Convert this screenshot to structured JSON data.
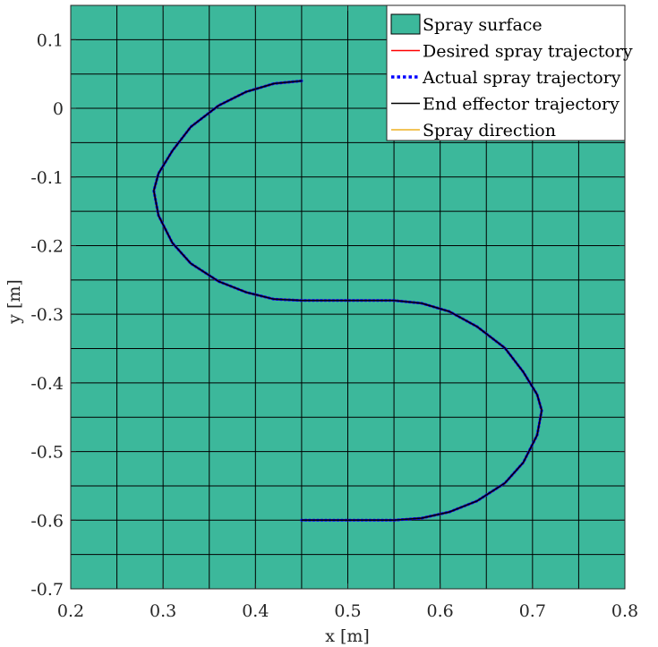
{
  "chart_data": {
    "type": "line",
    "title": "",
    "xlabel": "x [m]",
    "ylabel": "y [m]",
    "xlim": [
      0.2,
      0.8
    ],
    "ylim": [
      -0.7,
      0.15
    ],
    "xticks": [
      0.2,
      0.3,
      0.4,
      0.5,
      0.6,
      0.7,
      0.8
    ],
    "xtick_labels": [
      "0.2",
      "0.3",
      "0.4",
      "0.5",
      "0.6",
      "0.7",
      "0.8"
    ],
    "yticks": [
      0.1,
      0,
      -0.1,
      -0.2,
      -0.3,
      -0.4,
      -0.5,
      -0.6,
      -0.7
    ],
    "ytick_labels": [
      "0.1",
      "0",
      "-0.1",
      "-0.2",
      "-0.3",
      "-0.4",
      "-0.5",
      "-0.6",
      "-0.7"
    ],
    "surface": {
      "name": "Spray surface",
      "color": "#3cb89b",
      "edge_color": "#000000",
      "x_grid": [
        0.2,
        0.25,
        0.3,
        0.35,
        0.4,
        0.45,
        0.5,
        0.55,
        0.6,
        0.65,
        0.7,
        0.75,
        0.8
      ],
      "y_grid": [
        0.15,
        0.1,
        0.05,
        0.0,
        -0.05,
        -0.1,
        -0.15,
        -0.2,
        -0.25,
        -0.3,
        -0.35,
        -0.4,
        -0.45,
        -0.5,
        -0.55,
        -0.6,
        -0.65,
        -0.7
      ]
    },
    "legend": {
      "location": "top-right",
      "entries": [
        {
          "label": "Spray surface",
          "style": "patch",
          "color": "#3cb89b"
        },
        {
          "label": "Desired spray trajectory",
          "style": "solid",
          "color": "#ff0000"
        },
        {
          "label": "Actual spray trajectory",
          "style": "dotted",
          "color": "#0000ff"
        },
        {
          "label": "End effector trajectory",
          "style": "solid",
          "color": "#000000"
        },
        {
          "label": "Spray direction",
          "style": "solid",
          "color": "#edb120"
        }
      ]
    },
    "series": [
      {
        "name": "Desired spray trajectory",
        "color": "#ff0000",
        "style": "solid",
        "x": [
          0.45,
          0.42,
          0.39,
          0.36,
          0.33,
          0.31,
          0.295,
          0.29,
          0.295,
          0.31,
          0.33,
          0.36,
          0.39,
          0.42,
          0.45,
          0.5,
          0.55,
          0.58,
          0.61,
          0.64,
          0.67,
          0.69,
          0.705,
          0.71,
          0.705,
          0.69,
          0.67,
          0.64,
          0.61,
          0.58,
          0.55,
          0.5,
          0.45
        ],
        "y": [
          0.04,
          0.036,
          0.024,
          0.004,
          -0.027,
          -0.062,
          -0.095,
          -0.12,
          -0.156,
          -0.196,
          -0.226,
          -0.252,
          -0.268,
          -0.278,
          -0.28,
          -0.28,
          -0.28,
          -0.284,
          -0.296,
          -0.318,
          -0.349,
          -0.384,
          -0.417,
          -0.44,
          -0.476,
          -0.516,
          -0.546,
          -0.572,
          -0.588,
          -0.597,
          -0.6,
          -0.6,
          -0.6
        ]
      },
      {
        "name": "Actual spray trajectory",
        "color": "#0000ff",
        "style": "dotted",
        "x": [
          0.45,
          0.42,
          0.39,
          0.36,
          0.33,
          0.31,
          0.295,
          0.29,
          0.295,
          0.31,
          0.33,
          0.36,
          0.39,
          0.42,
          0.45,
          0.5,
          0.55,
          0.58,
          0.61,
          0.64,
          0.67,
          0.69,
          0.705,
          0.71,
          0.705,
          0.69,
          0.67,
          0.64,
          0.61,
          0.58,
          0.55,
          0.5,
          0.45
        ],
        "y": [
          0.04,
          0.036,
          0.024,
          0.004,
          -0.027,
          -0.062,
          -0.095,
          -0.12,
          -0.156,
          -0.196,
          -0.226,
          -0.252,
          -0.268,
          -0.278,
          -0.28,
          -0.28,
          -0.28,
          -0.284,
          -0.296,
          -0.318,
          -0.349,
          -0.384,
          -0.417,
          -0.44,
          -0.476,
          -0.516,
          -0.546,
          -0.572,
          -0.588,
          -0.597,
          -0.6,
          -0.6,
          -0.6
        ]
      },
      {
        "name": "End effector trajectory",
        "color": "#000000",
        "style": "solid",
        "x": [
          0.45,
          0.42,
          0.39,
          0.36,
          0.33,
          0.31,
          0.295,
          0.29,
          0.295,
          0.31,
          0.33,
          0.36,
          0.39,
          0.42,
          0.45,
          0.5,
          0.55,
          0.58,
          0.61,
          0.64,
          0.67,
          0.69,
          0.705,
          0.71,
          0.705,
          0.69,
          0.67,
          0.64,
          0.61,
          0.58,
          0.55,
          0.5,
          0.45
        ],
        "y": [
          0.04,
          0.036,
          0.024,
          0.004,
          -0.027,
          -0.062,
          -0.095,
          -0.12,
          -0.156,
          -0.196,
          -0.226,
          -0.252,
          -0.268,
          -0.278,
          -0.28,
          -0.28,
          -0.28,
          -0.284,
          -0.296,
          -0.318,
          -0.349,
          -0.384,
          -0.417,
          -0.44,
          -0.476,
          -0.516,
          -0.546,
          -0.572,
          -0.588,
          -0.597,
          -0.6,
          -0.6,
          -0.6
        ]
      }
    ]
  }
}
